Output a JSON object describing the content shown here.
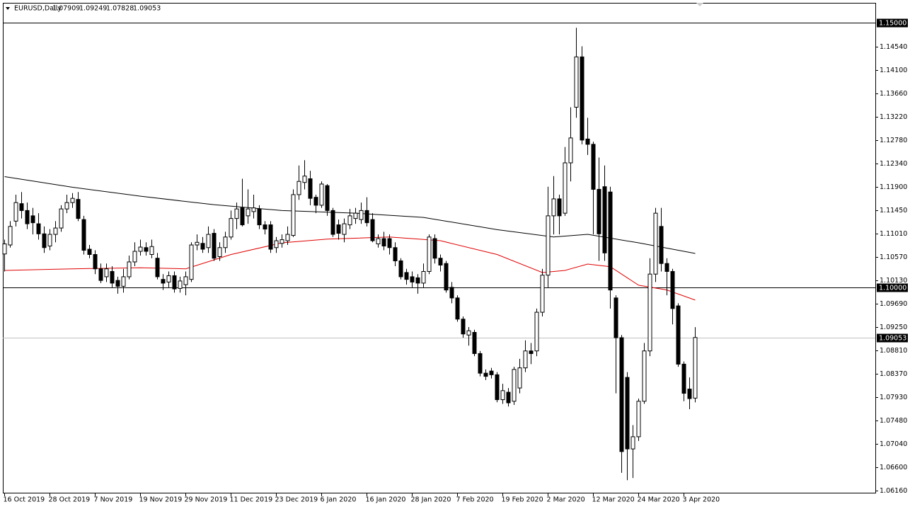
{
  "header": {
    "symbol": "EURUSD,Daily",
    "ohlc": [
      1.07909,
      1.09249,
      1.07828,
      1.09053
    ]
  },
  "chart_data": {
    "type": "candlestick",
    "categories": [
      "16 Oct 2019",
      null,
      null,
      null,
      null,
      null,
      null,
      null,
      "28 Oct 2019",
      null,
      null,
      null,
      null,
      null,
      null,
      null,
      "7 Nov 2019",
      null,
      null,
      null,
      null,
      null,
      null,
      null,
      "19 Nov 2019",
      null,
      null,
      null,
      null,
      null,
      null,
      null,
      "29 Nov 2019",
      null,
      null,
      null,
      null,
      null,
      null,
      null,
      "11 Dec 2019",
      null,
      null,
      null,
      null,
      null,
      null,
      null,
      "23 Dec 2019",
      null,
      null,
      null,
      null,
      null,
      null,
      null,
      "6 Jan 2020",
      null,
      null,
      null,
      null,
      null,
      null,
      null,
      "16 Jan 2020",
      null,
      null,
      null,
      null,
      null,
      null,
      null,
      "28 Jan 2020",
      null,
      null,
      null,
      null,
      null,
      null,
      null,
      "7 Feb 2020",
      null,
      null,
      null,
      null,
      null,
      null,
      null,
      "19 Feb 2020",
      null,
      null,
      null,
      null,
      null,
      null,
      null,
      "2 Mar 2020",
      null,
      null,
      null,
      null,
      null,
      null,
      null,
      "12 Mar 2020",
      null,
      null,
      null,
      null,
      null,
      null,
      null,
      "24 Mar 2020",
      null,
      null,
      null,
      null,
      null,
      null,
      null,
      "3 Apr 2020",
      null,
      null
    ],
    "open": [
      1.1063,
      1.108,
      1.1125,
      1.1158,
      1.1145,
      1.1135,
      1.112,
      1.1101,
      1.1078,
      1.11,
      1.1112,
      1.1148,
      1.116,
      1.1166,
      1.1128,
      1.1072,
      1.1062,
      1.1035,
      1.102,
      1.103,
      1.1013,
      1.1002,
      1.102,
      1.1048,
      1.1068,
      1.1075,
      1.1062,
      1.1055,
      1.1015,
      1.101,
      1.1022,
      1.0998,
      1.1005,
      1.1015,
      1.108,
      1.1083,
      1.1075,
      1.1102,
      1.1058,
      1.1075,
      1.1095,
      1.113,
      1.115,
      1.1135,
      1.1143,
      1.1148,
      1.1118,
      1.1118,
      1.1075,
      1.1083,
      1.1088,
      1.1098,
      1.1175,
      1.1198,
      1.1205,
      1.117,
      1.1155,
      1.1192,
      1.1145,
      1.1118,
      1.11,
      1.1118,
      1.113,
      1.1128,
      1.1145,
      1.1128,
      1.1082,
      1.1092,
      1.1092,
      1.1075,
      1.105,
      1.1028,
      1.102,
      1.1018,
      1.1008,
      1.103,
      1.1092,
      1.1055,
      1.1045,
      1.1,
      1.098,
      1.094,
      1.091,
      1.0915,
      1.0875,
      1.0838,
      1.0842,
      1.0835,
      1.0788,
      1.0802,
      1.0785,
      1.081,
      1.0848,
      1.088,
      1.088,
      1.0953,
      1.1023,
      1.1135,
      1.1167,
      1.114,
      1.1235,
      1.134,
      1.1435,
      1.128,
      1.127,
      1.1185,
      1.119,
      1.118,
      1.098,
      1.0905,
      1.083,
      1.0695,
      1.0718,
      1.0785,
      1.088,
      1.1025,
      1.1115,
      1.1045,
      1.103,
      1.0965,
      1.0855,
      1.0808,
      1.07909
    ],
    "high": [
      1.109,
      1.1125,
      1.1175,
      1.118,
      1.116,
      1.115,
      1.114,
      1.1115,
      1.111,
      1.1125,
      1.1155,
      1.1175,
      1.1178,
      1.118,
      1.1135,
      1.108,
      1.107,
      1.1045,
      1.1045,
      1.104,
      1.102,
      1.1035,
      1.106,
      1.1085,
      1.109,
      1.1085,
      1.109,
      1.1065,
      1.1025,
      1.103,
      1.103,
      1.102,
      1.103,
      1.1085,
      1.11,
      1.1095,
      1.1115,
      1.111,
      1.1085,
      1.1105,
      1.1145,
      1.116,
      1.1205,
      1.1185,
      1.1175,
      1.1155,
      1.1125,
      1.1125,
      1.1095,
      1.11,
      1.1115,
      1.1185,
      1.123,
      1.124,
      1.122,
      1.1175,
      1.12,
      1.1195,
      1.115,
      1.1128,
      1.113,
      1.1148,
      1.115,
      1.116,
      1.117,
      1.114,
      1.11,
      1.1105,
      1.11,
      1.1085,
      1.1055,
      1.1035,
      1.103,
      1.1025,
      1.1045,
      1.11,
      1.11,
      1.1062,
      1.105,
      1.101,
      1.0985,
      1.0945,
      1.0925,
      1.092,
      1.088,
      1.0845,
      1.0848,
      1.084,
      1.0818,
      1.081,
      1.085,
      1.0865,
      1.09,
      1.0895,
      1.096,
      1.1035,
      1.119,
      1.121,
      1.1175,
      1.1265,
      1.134,
      1.149,
      1.1455,
      1.132,
      1.1275,
      1.1245,
      1.123,
      1.119,
      1.0985,
      1.091,
      1.084,
      1.074,
      1.079,
      1.0895,
      1.1055,
      1.115,
      1.115,
      1.1055,
      1.1035,
      1.097,
      1.086,
      1.083,
      1.09249
    ],
    "low": [
      1.103,
      1.1075,
      1.1115,
      1.113,
      1.111,
      1.11,
      1.109,
      1.1065,
      1.107,
      1.1085,
      1.1105,
      1.114,
      1.115,
      1.1125,
      1.1062,
      1.1055,
      1.1025,
      1.1008,
      1.101,
      1.1,
      1.0988,
      1.099,
      1.1015,
      1.104,
      1.106,
      1.106,
      1.1055,
      1.1015,
      1.0995,
      1.1,
      1.099,
      1.099,
      1.0985,
      1.101,
      1.107,
      1.1065,
      1.1065,
      1.105,
      1.105,
      1.1065,
      1.109,
      1.111,
      1.1115,
      1.112,
      1.113,
      1.111,
      1.11,
      1.1065,
      1.1065,
      1.1075,
      1.108,
      1.1095,
      1.1165,
      1.1185,
      1.1155,
      1.114,
      1.115,
      1.1135,
      1.1095,
      1.109,
      1.1085,
      1.111,
      1.112,
      1.112,
      1.1115,
      1.1085,
      1.1075,
      1.107,
      1.1062,
      1.104,
      1.1015,
      1.1005,
      1.1,
      1.0988,
      1.1,
      1.1025,
      1.1045,
      1.103,
      1.099,
      1.097,
      1.0935,
      1.0905,
      1.089,
      1.087,
      1.0832,
      1.0825,
      1.0828,
      1.0783,
      1.078,
      1.0775,
      1.0778,
      1.08,
      1.084,
      1.0855,
      1.087,
      1.0945,
      1.1,
      1.11,
      1.11,
      1.1135,
      1.12,
      1.132,
      1.127,
      1.125,
      1.11,
      1.105,
      1.105,
      1.096,
      1.08,
      1.065,
      1.0636,
      1.064,
      1.071,
      1.078,
      1.087,
      1.101,
      1.103,
      1.0985,
      1.093,
      1.085,
      1.0785,
      1.077,
      1.07828
    ],
    "close": [
      1.1082,
      1.1115,
      1.116,
      1.1145,
      1.112,
      1.1122,
      1.1101,
      1.1075,
      1.11,
      1.1112,
      1.1148,
      1.116,
      1.1168,
      1.113,
      1.107,
      1.1062,
      1.1035,
      1.1013,
      1.1035,
      1.1008,
      1.1002,
      1.102,
      1.1048,
      1.1068,
      1.1076,
      1.1068,
      1.1077,
      1.102,
      1.1008,
      1.1022,
      1.0997,
      1.1012,
      1.102,
      1.108,
      1.1085,
      1.1072,
      1.11,
      1.1055,
      1.1075,
      1.1095,
      1.113,
      1.1148,
      1.1118,
      1.1148,
      1.115,
      1.1118,
      1.111,
      1.1072,
      1.1088,
      1.109,
      1.11,
      1.1175,
      1.12,
      1.121,
      1.1168,
      1.1155,
      1.1195,
      1.1145,
      1.11,
      1.1102,
      1.112,
      1.1135,
      1.114,
      1.1145,
      1.1122,
      1.1088,
      1.1092,
      1.1078,
      1.1075,
      1.105,
      1.102,
      1.1015,
      1.101,
      1.1008,
      1.103,
      1.1095,
      1.1055,
      1.1042,
      1.0995,
      1.098,
      1.094,
      1.0912,
      1.0918,
      1.0875,
      1.0838,
      1.0832,
      1.0835,
      1.0788,
      1.0805,
      1.0782,
      1.0845,
      1.0848,
      1.088,
      1.0875,
      1.0953,
      1.1023,
      1.1135,
      1.1167,
      1.1135,
      1.1235,
      1.1282,
      1.1435,
      1.1278,
      1.127,
      1.1185,
      1.1101,
      1.1065,
      1.0995,
      1.0905,
      1.069,
      1.0695,
      1.0718,
      1.0785,
      1.088,
      1.1025,
      1.114,
      1.1045,
      1.103,
      1.096,
      1.0855,
      1.08,
      1.079,
      1.09053
    ],
    "lines": [
      {
        "color": "#000000",
        "x": [
          0,
          12,
          24,
          37,
          49,
          62,
          74,
          87,
          97,
          103,
          112,
          122
        ],
        "values": [
          1.1209,
          1.1189,
          1.1172,
          1.1156,
          1.1145,
          1.114,
          1.1132,
          1.1109,
          1.1095,
          1.11,
          1.1084,
          1.1064
        ]
      },
      {
        "color": "#e00000",
        "x": [
          0,
          12,
          24,
          32,
          40,
          49,
          57,
          68,
          77,
          87,
          95,
          99,
          103,
          107,
          112,
          117,
          122
        ],
        "values": [
          1.1032,
          1.1035,
          1.1037,
          1.1035,
          1.1062,
          1.1084,
          1.1091,
          1.1095,
          1.1088,
          1.1062,
          1.1028,
          1.1032,
          1.1044,
          1.1039,
          1.1004,
          1.0995,
          1.0976
        ]
      }
    ],
    "ylim": [
      1.0611,
      1.1513
    ],
    "yticks": [
      {
        "value": 1.1454,
        "label": "1.14540"
      },
      {
        "value": 1.141,
        "label": "1.14100"
      },
      {
        "value": 1.1366,
        "label": "1.13660"
      },
      {
        "value": 1.1322,
        "label": "1.13220"
      },
      {
        "value": 1.1278,
        "label": "1.12780"
      },
      {
        "value": 1.1234,
        "label": "1.12340"
      },
      {
        "value": 1.119,
        "label": "1.11900"
      },
      {
        "value": 1.1145,
        "label": "1.11450"
      },
      {
        "value": 1.1101,
        "label": "1.11010"
      },
      {
        "value": 1.1057,
        "label": "1.10570"
      },
      {
        "value": 1.1013,
        "label": "1.10130"
      },
      {
        "value": 1.0969,
        "label": "1.09690"
      },
      {
        "value": 1.0925,
        "label": "1.09250"
      },
      {
        "value": 1.0881,
        "label": "1.08810"
      },
      {
        "value": 1.0837,
        "label": "1.08370"
      },
      {
        "value": 1.0793,
        "label": "1.07930"
      },
      {
        "value": 1.0748,
        "label": "1.07480"
      },
      {
        "value": 1.0704,
        "label": "1.07040"
      },
      {
        "value": 1.066,
        "label": "1.06600"
      },
      {
        "value": 1.0616,
        "label": "1.06160"
      }
    ],
    "hlines": [
      {
        "value": 1.15,
        "label": "1.15000"
      },
      {
        "value": 1.1,
        "label": "1.10000"
      }
    ],
    "last_price": {
      "value": 1.09053,
      "label": "1.09053"
    }
  }
}
